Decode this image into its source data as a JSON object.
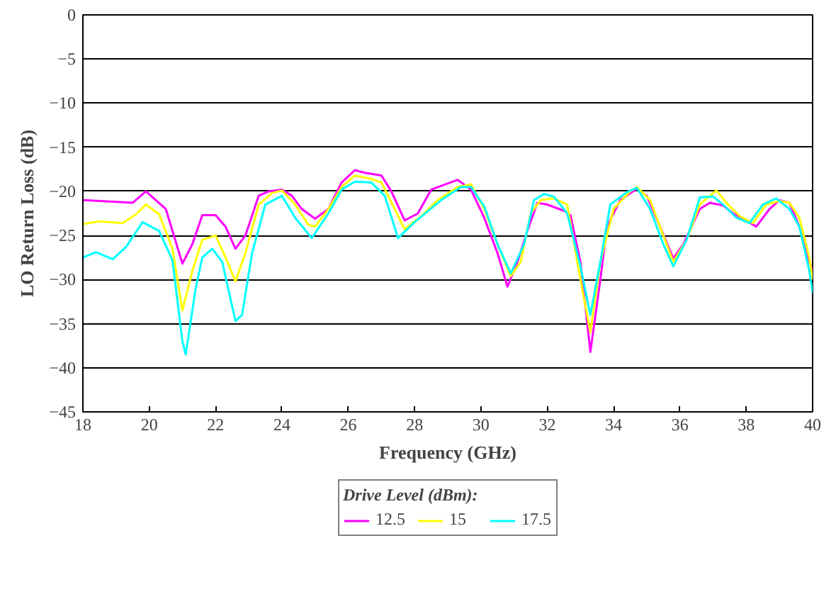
{
  "chart_data": {
    "type": "line",
    "xlabel": "Frequency (GHz)",
    "ylabel": "LO Return Loss (dB)",
    "legend_title": "Drive Level (dBm):",
    "legend": "bottom",
    "grid": "y",
    "line_style": "solid",
    "xlim": [
      18,
      40
    ],
    "xticks": [
      18,
      20,
      22,
      24,
      26,
      28,
      30,
      32,
      34,
      36,
      38,
      40
    ],
    "ylim": [
      -45,
      0
    ],
    "yticks": [
      -45,
      -40,
      -35,
      -30,
      -25,
      -20,
      -15,
      -10,
      -5,
      0
    ],
    "series": [
      {
        "name": "12.5",
        "color": "#ff00ff",
        "x": [
          18,
          19,
          19.5,
          19.9,
          20.5,
          21.0,
          21.3,
          21.6,
          22.0,
          22.3,
          22.6,
          22.9,
          23.3,
          23.6,
          24.0,
          24.3,
          24.6,
          25.0,
          25.4,
          25.8,
          26.2,
          26.5,
          27.0,
          27.3,
          27.7,
          28.1,
          28.5,
          29.3,
          29.7,
          30.1,
          30.5,
          30.8,
          31.1,
          31.4,
          31.7,
          32.0,
          32.5,
          32.7,
          33.0,
          33.3,
          33.6,
          33.8,
          34.2,
          34.7,
          35.0,
          35.4,
          35.8,
          36.1,
          36.6,
          36.9,
          37.3,
          37.6,
          38.0,
          38.3,
          38.7,
          39.0,
          39.3,
          39.6,
          39.9,
          40.0
        ],
        "values": [
          -21,
          -21.2,
          -21.3,
          -20,
          -22,
          -28.2,
          -26,
          -22.7,
          -22.7,
          -24,
          -26.5,
          -25,
          -20.5,
          -20,
          -19.8,
          -20.5,
          -22,
          -23.1,
          -22,
          -19,
          -17.6,
          -17.9,
          -18.2,
          -20,
          -23.3,
          -22.5,
          -19.8,
          -18.7,
          -19.8,
          -23,
          -27,
          -30.8,
          -28,
          -24.5,
          -21.3,
          -21.5,
          -22.2,
          -22.7,
          -28,
          -38.2,
          -30,
          -24,
          -21,
          -19.7,
          -20.5,
          -24,
          -27.6,
          -26,
          -22,
          -21.3,
          -21.6,
          -22.5,
          -23.3,
          -24,
          -22,
          -21,
          -21.3,
          -24,
          -28,
          -29
        ]
      },
      {
        "name": "15",
        "color": "#ffff00",
        "x": [
          18,
          18.5,
          19.2,
          19.6,
          19.9,
          20.3,
          20.7,
          21.0,
          21.3,
          21.6,
          22.0,
          22.3,
          22.6,
          22.9,
          23.3,
          23.7,
          24.0,
          24.4,
          24.8,
          25.0,
          25.4,
          25.8,
          26.2,
          26.7,
          27.0,
          27.4,
          27.7,
          28.2,
          28.7,
          29.3,
          29.7,
          30.1,
          30.5,
          30.9,
          31.2,
          31.5,
          31.8,
          32.2,
          32.6,
          33.0,
          33.3,
          33.6,
          34.0,
          34.5,
          34.7,
          35.1,
          35.4,
          35.8,
          36.2,
          36.6,
          36.9,
          37.1,
          37.4,
          37.8,
          38.2,
          38.6,
          39.0,
          39.3,
          39.6,
          39.9,
          40.0
        ],
        "values": [
          -23.7,
          -23.4,
          -23.6,
          -22.6,
          -21.5,
          -22.6,
          -26.5,
          -33.5,
          -29,
          -25.5,
          -25,
          -27.5,
          -30.2,
          -27,
          -21.5,
          -20.2,
          -19.9,
          -21.5,
          -23.8,
          -24,
          -22,
          -19.5,
          -18.2,
          -18.6,
          -19,
          -22,
          -24.3,
          -22.8,
          -21,
          -19.5,
          -19.2,
          -22,
          -26,
          -29.6,
          -28,
          -22.5,
          -21,
          -20.8,
          -21.5,
          -30,
          -36,
          -28,
          -22,
          -20,
          -19.5,
          -21,
          -24,
          -28,
          -25.5,
          -21.5,
          -20.5,
          -19.9,
          -21.3,
          -22.8,
          -23.6,
          -21.5,
          -21.1,
          -21.3,
          -23,
          -27.5,
          -30
        ]
      },
      {
        "name": "17.5",
        "color": "#00ffff",
        "x": [
          18,
          18.4,
          18.9,
          19.3,
          19.8,
          20.3,
          20.7,
          21.0,
          21.1,
          21.4,
          21.6,
          21.9,
          22.2,
          22.6,
          22.8,
          23.1,
          23.5,
          24.0,
          24.4,
          24.9,
          25.4,
          25.8,
          26.2,
          26.7,
          27.1,
          27.5,
          28.0,
          28.8,
          29.4,
          29.7,
          30.1,
          30.5,
          30.9,
          31.3,
          31.6,
          31.9,
          32.2,
          32.6,
          33.0,
          33.3,
          33.6,
          33.9,
          34.4,
          34.7,
          35.1,
          35.5,
          35.8,
          36.2,
          36.6,
          37.0,
          37.3,
          37.7,
          38.1,
          38.5,
          38.9,
          39.3,
          39.6,
          39.9,
          40.0
        ],
        "values": [
          -27.5,
          -26.9,
          -27.7,
          -26.3,
          -23.5,
          -24.5,
          -27.8,
          -37,
          -38.5,
          -31,
          -27.5,
          -26.5,
          -28,
          -34.7,
          -34,
          -27,
          -21.5,
          -20.5,
          -23,
          -25.3,
          -22.5,
          -19.8,
          -18.9,
          -19,
          -20.5,
          -25.3,
          -23.5,
          -21,
          -19.5,
          -19.5,
          -21.7,
          -26,
          -29.3,
          -26,
          -21,
          -20.3,
          -20.6,
          -22.5,
          -28.5,
          -34,
          -28,
          -21.5,
          -20.1,
          -19.6,
          -22,
          -26,
          -28.5,
          -25.5,
          -20.7,
          -20.6,
          -21.5,
          -23,
          -23.6,
          -21.5,
          -20.8,
          -22,
          -24,
          -29,
          -31.5
        ]
      }
    ]
  }
}
